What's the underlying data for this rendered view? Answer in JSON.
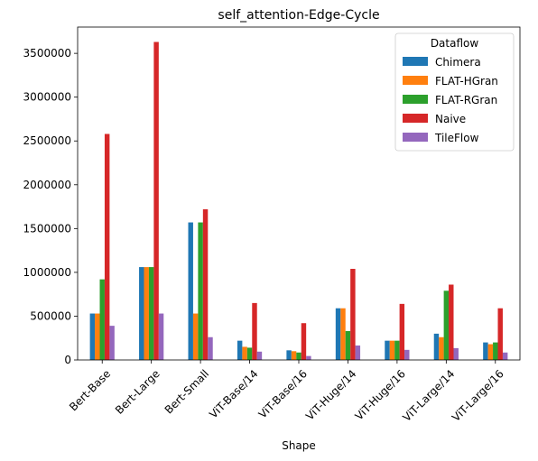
{
  "chart_data": {
    "type": "bar",
    "title": "self_attention-Edge-Cycle",
    "xlabel": "Shape",
    "ylabel": "",
    "ylim": [
      0,
      3800000
    ],
    "yticks": [
      "0",
      "500000",
      "1000000",
      "1500000",
      "2000000",
      "2500000",
      "3000000",
      "3500000"
    ],
    "ytick_values": [
      0,
      500000,
      1000000,
      1500000,
      2000000,
      2500000,
      3000000,
      3500000
    ],
    "categories": [
      "Bert-Base",
      "Bert-Large",
      "Bert-Small",
      "ViT-Base/14",
      "ViT-Base/16",
      "ViT-Huge/14",
      "ViT-Huge/16",
      "ViT-Large/14",
      "ViT-Large/16"
    ],
    "legend_title": "Dataflow",
    "legend_position": "top-right",
    "grid": false,
    "series": [
      {
        "name": "Chimera",
        "color": "#1f77b4",
        "values": [
          530000,
          1060000,
          1570000,
          220000,
          110000,
          590000,
          220000,
          300000,
          200000
        ]
      },
      {
        "name": "FLAT-HGran",
        "color": "#ff7f0e",
        "values": [
          530000,
          1060000,
          530000,
          150000,
          100000,
          590000,
          220000,
          260000,
          180000
        ]
      },
      {
        "name": "FLAT-RGran",
        "color": "#2ca02c",
        "values": [
          920000,
          1060000,
          1570000,
          140000,
          85000,
          330000,
          220000,
          790000,
          200000
        ]
      },
      {
        "name": "Naive",
        "color": "#d62728",
        "values": [
          2580000,
          3630000,
          1720000,
          650000,
          420000,
          1040000,
          640000,
          860000,
          590000
        ]
      },
      {
        "name": "TileFlow",
        "color": "#9467bd",
        "values": [
          390000,
          530000,
          260000,
          95000,
          45000,
          165000,
          115000,
          135000,
          85000
        ]
      }
    ]
  }
}
